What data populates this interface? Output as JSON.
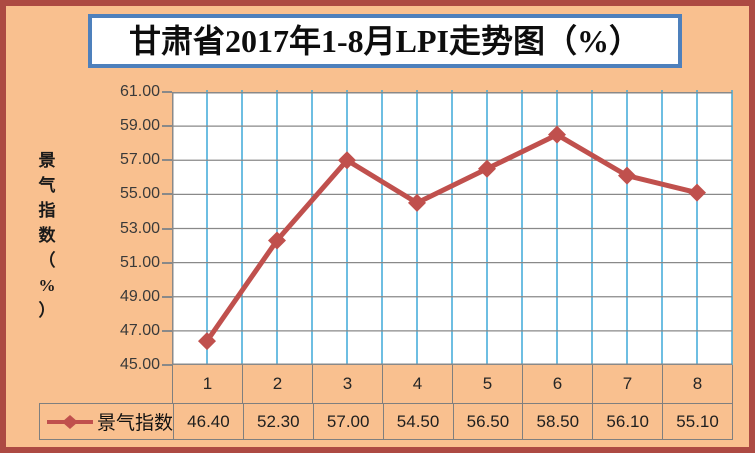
{
  "title": "甘肃省2017年1-8月LPI走势图（%）",
  "chart_data": {
    "type": "line",
    "title": "甘肃省2017年1-8月LPI走势图（%）",
    "categories": [
      "1",
      "2",
      "3",
      "4",
      "5",
      "6",
      "7",
      "8"
    ],
    "series": [
      {
        "name": "景气指数",
        "values": [
          46.4,
          52.3,
          57.0,
          54.5,
          56.5,
          58.5,
          56.1,
          55.1
        ]
      }
    ],
    "value_labels": [
      "46.40",
      "52.30",
      "57.00",
      "54.50",
      "56.50",
      "58.50",
      "56.10",
      "55.10"
    ],
    "ylabel": "景气指数（%）",
    "ylim": [
      45,
      61
    ],
    "ytick_step": 2,
    "ytick_labels": [
      "61.00",
      "59.00",
      "57.00",
      "55.00",
      "53.00",
      "51.00",
      "49.00",
      "47.00",
      "45.00"
    ],
    "grid": {
      "horizontal_major": true,
      "vertical_minor": true
    },
    "legend_position": "bottom-table-left",
    "marker": "diamond"
  },
  "colors": {
    "background": "#F9C08F",
    "frame_border": "#AD4A43",
    "title_border": "#4E80BC",
    "title_background": "#FFFFFF",
    "series_line": "#C0504D",
    "grid_horizontal": "#898989",
    "grid_vertical": "#3FA9D8",
    "table_border": "#7F7F7F",
    "tick_text": "#3A3A3A"
  }
}
